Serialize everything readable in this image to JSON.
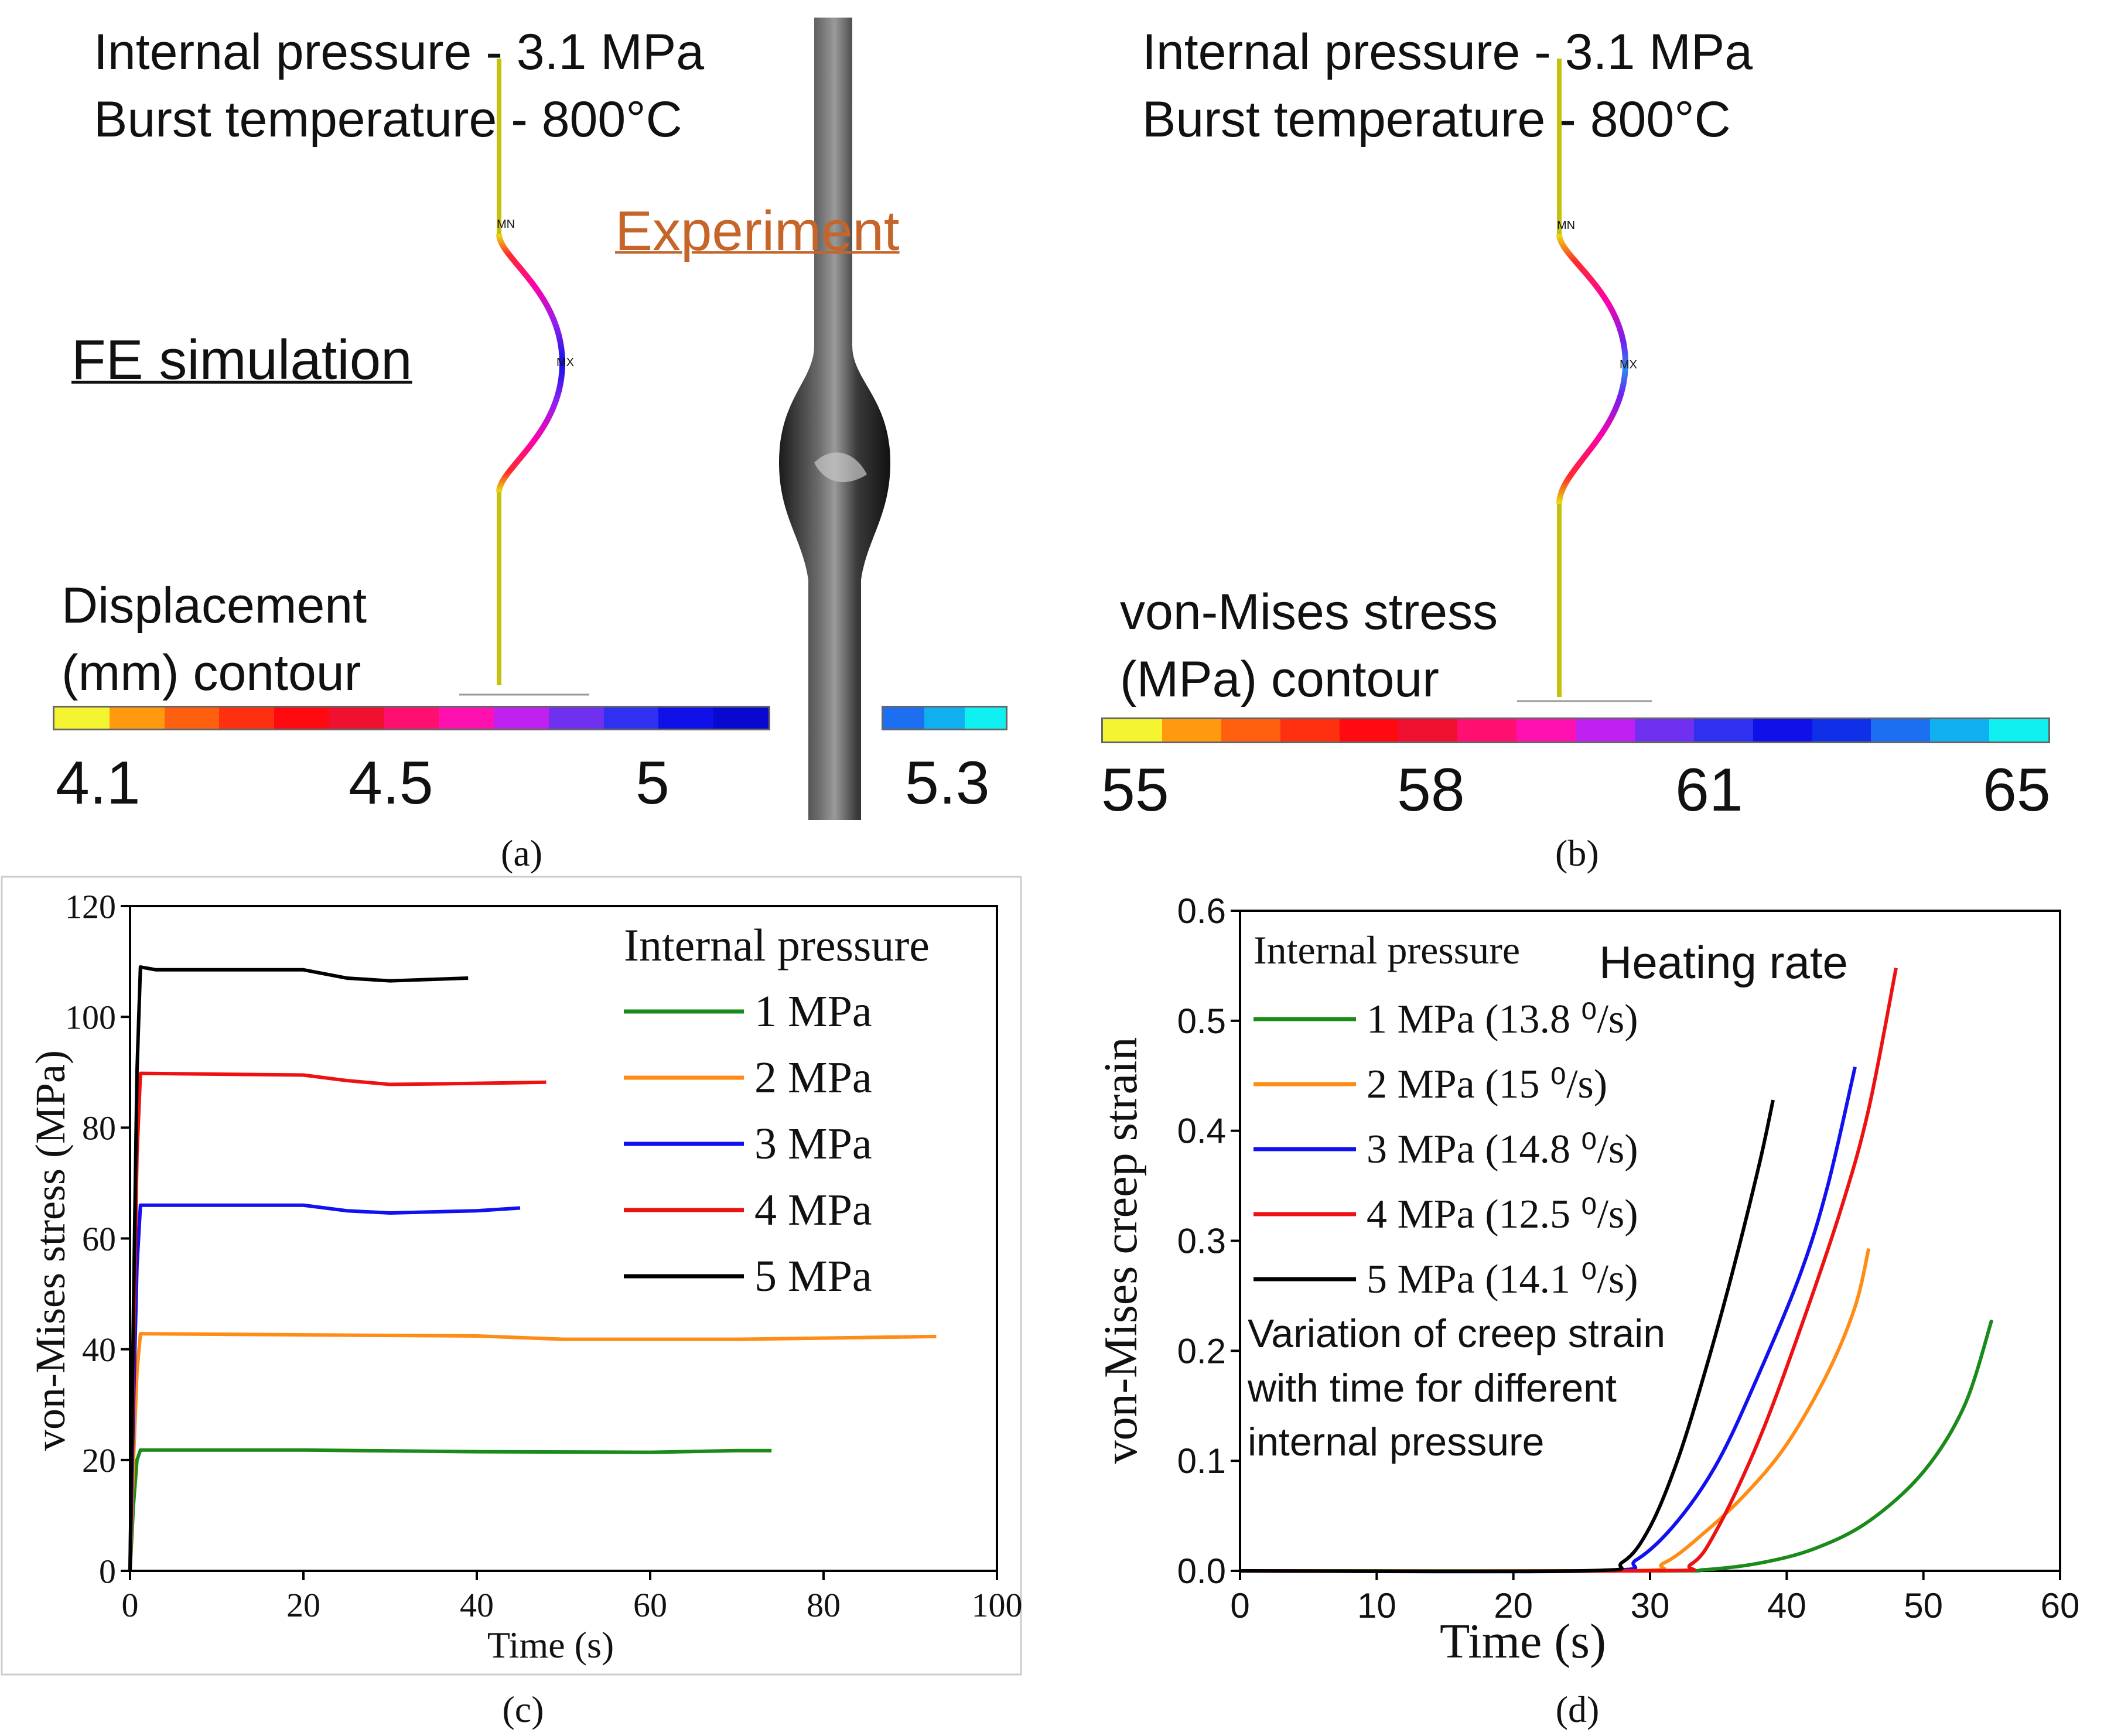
{
  "panel_a": {
    "line1": "Internal pressure - 3.1 MPa",
    "line2": "Burst temperature - 800°C",
    "fe_label": "FE simulation",
    "exp_label": "Experiment",
    "contour_line1": "Displacement",
    "contour_line2": "(mm) contour",
    "min_marker": "MN",
    "max_marker": "MX",
    "scale": [
      "4.1",
      "4.5",
      "5",
      "5.3"
    ],
    "caption": "(a)",
    "colors": {
      "label_orange": "#c5652a"
    }
  },
  "panel_b": {
    "line1": "Internal pressure - 3.1 MPa",
    "line2": "Burst temperature - 800°C",
    "contour_line1": "von-Mises stress",
    "contour_line2": "(MPa) contour",
    "min_marker": "MN",
    "max_marker": "MX",
    "scale": [
      "55",
      "58",
      "61",
      "65"
    ],
    "caption": "(b)"
  },
  "colors": {
    "green": "#1a8a1a",
    "orange": "#ff8c14",
    "blue": "#1010f0",
    "red": "#ee1111",
    "black": "#000000"
  },
  "chart_data": [
    {
      "id": "c",
      "type": "line",
      "xlabel": "Time (s)",
      "ylabel": "von-Mises stress (MPa)",
      "xlim": [
        0,
        100
      ],
      "ylim": [
        0,
        120
      ],
      "xticks": [
        0,
        20,
        40,
        60,
        80,
        100
      ],
      "yticks": [
        0,
        20,
        40,
        60,
        80,
        100,
        120
      ],
      "legend_title": "Internal pressure",
      "legend_position": "top-right",
      "caption": "(c)",
      "series": [
        {
          "name": "1 MPa",
          "color": "green",
          "x": [
            0,
            0.4,
            0.8,
            1.2,
            20,
            40,
            60,
            70,
            74
          ],
          "y": [
            0,
            12,
            20,
            21.8,
            21.8,
            21.5,
            21.4,
            21.7,
            21.7
          ]
        },
        {
          "name": "2 MPa",
          "color": "orange",
          "x": [
            0,
            0.4,
            0.8,
            1.2,
            20,
            40,
            50,
            70,
            93
          ],
          "y": [
            0,
            20,
            36,
            42.8,
            42.6,
            42.4,
            41.8,
            41.8,
            42.3
          ]
        },
        {
          "name": "3 MPa",
          "color": "blue",
          "x": [
            0,
            0.4,
            0.8,
            1.2,
            20,
            25,
            30,
            40,
            45
          ],
          "y": [
            0,
            30,
            55,
            66,
            66,
            65,
            64.6,
            65,
            65.5
          ]
        },
        {
          "name": "4 MPa",
          "color": "red",
          "x": [
            0,
            0.4,
            0.8,
            1.2,
            20,
            25,
            30,
            40,
            48
          ],
          "y": [
            0,
            40,
            75,
            89.8,
            89.5,
            88.5,
            87.8,
            88.0,
            88.2
          ]
        },
        {
          "name": "5 MPa",
          "color": "black",
          "x": [
            0,
            0.4,
            0.8,
            1.2,
            3,
            20,
            25,
            30,
            39
          ],
          "y": [
            0,
            48,
            90,
            109,
            108.5,
            108.5,
            107,
            106.5,
            107
          ]
        }
      ]
    },
    {
      "id": "d",
      "type": "line",
      "xlabel": "Time (s)",
      "ylabel": "von-Mises creep strain",
      "xlim": [
        0,
        60
      ],
      "ylim": [
        0,
        0.6
      ],
      "xticks": [
        "0",
        "10",
        "20",
        "30",
        "40",
        "50",
        "60"
      ],
      "yticks": [
        "0.0",
        "0.1",
        "0.2",
        "0.3",
        "0.4",
        "0.5",
        "0.6"
      ],
      "legend_title": "Internal pressure",
      "heating_title": "Heating rate",
      "legend_position": "top-left",
      "annotation": [
        "Variation of creep strain",
        "with time for different",
        "internal pressure"
      ],
      "caption": "(d)",
      "series": [
        {
          "name": "1 MPa (13.8 ⁰/s)",
          "color": "green",
          "x": [
            0,
            30,
            34,
            38,
            42,
            46,
            50,
            53,
            55
          ],
          "y": [
            0,
            0,
            0.001,
            0.007,
            0.02,
            0.045,
            0.09,
            0.15,
            0.228
          ]
        },
        {
          "name": "2 MPa (15 ⁰/s)",
          "color": "orange",
          "x": [
            0,
            28,
            31,
            34,
            37,
            40,
            43,
            45,
            46
          ],
          "y": [
            0,
            0,
            0.007,
            0.035,
            0.07,
            0.115,
            0.18,
            0.24,
            0.293
          ]
        },
        {
          "name": "3 MPa (14.8 ⁰/s)",
          "color": "blue",
          "x": [
            0,
            26,
            29,
            32,
            35,
            38,
            41,
            43,
            45
          ],
          "y": [
            0,
            0,
            0.01,
            0.045,
            0.1,
            0.18,
            0.27,
            0.35,
            0.458
          ]
        },
        {
          "name": "4 MPa (12.5 ⁰/s)",
          "color": "red",
          "x": [
            0,
            30,
            33,
            35,
            38,
            41,
            44,
            46,
            48
          ],
          "y": [
            0,
            0,
            0.006,
            0.04,
            0.12,
            0.22,
            0.33,
            0.42,
            0.548
          ]
        },
        {
          "name": "5 MPa (14.1 ⁰/s)",
          "color": "black",
          "x": [
            0,
            25,
            28,
            30,
            32,
            34,
            36,
            38,
            39
          ],
          "y": [
            0,
            0,
            0.008,
            0.04,
            0.1,
            0.18,
            0.27,
            0.37,
            0.428
          ]
        }
      ]
    }
  ]
}
